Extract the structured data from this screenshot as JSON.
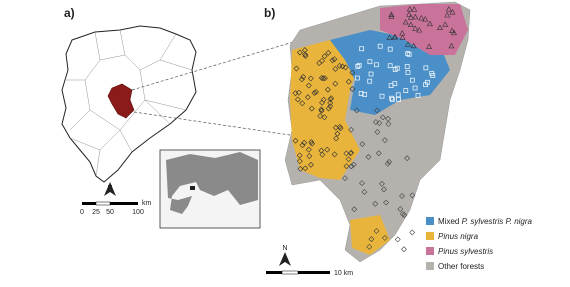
{
  "panel_a": {
    "label": "a)",
    "scale_labels": [
      "0",
      "25",
      "50",
      "100"
    ],
    "scale_unit": "km",
    "north": "N"
  },
  "panel_b": {
    "label": "b)",
    "scale_label": "10 km",
    "north": "N",
    "legend": [
      {
        "prefix": "Mixed",
        "italic": "P. sylvestris P. nigra"
      },
      {
        "italic": "Pinus nigra"
      },
      {
        "italic": "Pinus sylvestris"
      },
      {
        "prefix": "Other forests"
      }
    ]
  }
}
